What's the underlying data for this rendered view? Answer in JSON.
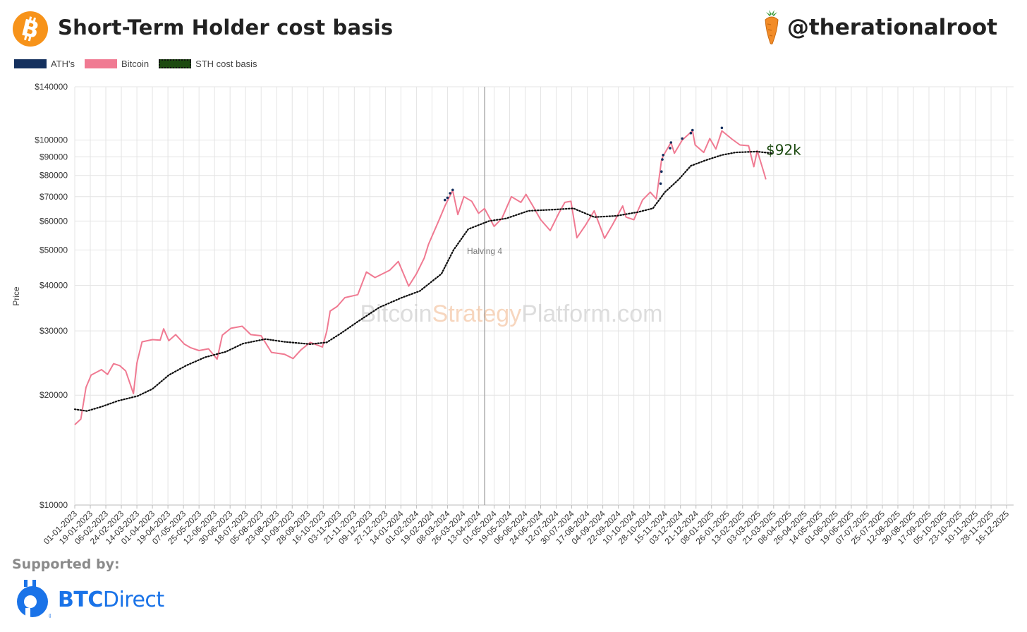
{
  "header": {
    "title": "Short-Term Holder cost basis",
    "handle": "@therationalroot",
    "logo_icon": "bitcoin-logo-icon",
    "handle_icon": "carrot-icon"
  },
  "legend": [
    {
      "label": "ATH's",
      "color": "#14305e"
    },
    {
      "label": "Bitcoin",
      "color": "#f07a92"
    },
    {
      "label": "STH cost basis",
      "color": "#1c4a10"
    }
  ],
  "footer": {
    "supported_by": "Supported by:",
    "sponsor_bold": "BTC",
    "sponsor_rest": "Direct",
    "sponsor_icon": "btcdirect-logo-icon",
    "sponsor_color": "#1a73e8"
  },
  "chart_data": {
    "type": "line",
    "y_scale": "log",
    "ylabel": "Price",
    "ylim": [
      10000,
      140000
    ],
    "y_ticks": [
      {
        "v": 10000,
        "label": "$10000"
      },
      {
        "v": 20000,
        "label": "$20000"
      },
      {
        "v": 30000,
        "label": "$30000"
      },
      {
        "v": 40000,
        "label": "$40000"
      },
      {
        "v": 50000,
        "label": "$50000"
      },
      {
        "v": 60000,
        "label": "$60000"
      },
      {
        "v": 70000,
        "label": "$70000"
      },
      {
        "v": 80000,
        "label": "$80000"
      },
      {
        "v": 90000,
        "label": "$90000"
      },
      {
        "v": 100000,
        "label": "$100000"
      },
      {
        "v": 140000,
        "label": "$140000"
      }
    ],
    "x_tick_labels": [
      "01-01-2023",
      "19-01-2023",
      "06-02-2023",
      "24-02-2023",
      "14-03-2023",
      "01-04-2023",
      "19-04-2023",
      "07-05-2023",
      "25-05-2023",
      "12-06-2023",
      "30-06-2023",
      "18-07-2023",
      "05-08-2023",
      "23-08-2023",
      "10-09-2023",
      "28-09-2023",
      "16-10-2023",
      "03-11-2023",
      "21-11-2023",
      "09-12-2023",
      "27-12-2023",
      "14-01-2024",
      "01-02-2024",
      "19-02-2024",
      "08-03-2024",
      "26-03-2024",
      "13-04-2024",
      "01-05-2024",
      "19-05-2024",
      "06-06-2024",
      "24-06-2024",
      "12-07-2024",
      "30-07-2024",
      "17-08-2024",
      "04-09-2024",
      "22-09-2024",
      "10-10-2024",
      "28-10-2024",
      "15-11-2024",
      "03-12-2024",
      "21-12-2024",
      "08-01-2025",
      "26-01-2025",
      "13-02-2025",
      "03-03-2025",
      "21-03-2025",
      "08-04-2025",
      "26-04-2025",
      "14-05-2025",
      "01-06-2025",
      "19-06-2025",
      "07-07-2025",
      "25-07-2025",
      "12-08-2025",
      "30-08-2025",
      "17-09-2025",
      "05-10-2025",
      "23-10-2025",
      "10-11-2025",
      "28-11-2025",
      "16-12-2025"
    ],
    "grid": true,
    "annotations": [
      {
        "type": "vline",
        "x": "20-04-2024",
        "label": "Halving 4"
      },
      {
        "type": "text",
        "x": "20-03-2025",
        "y": 92000,
        "label": "$92k",
        "color": "#1c4a10"
      }
    ],
    "watermark": {
      "part1": "Bitcoin",
      "part2": "Strategy",
      "part3": "Platform.com"
    },
    "series": [
      {
        "name": "Bitcoin",
        "color": "#f07a92",
        "points": [
          [
            "01-01-2023",
            16600
          ],
          [
            "08-01-2023",
            17200
          ],
          [
            "14-01-2023",
            21000
          ],
          [
            "20-01-2023",
            22700
          ],
          [
            "01-02-2023",
            23500
          ],
          [
            "08-02-2023",
            22800
          ],
          [
            "15-02-2023",
            24400
          ],
          [
            "22-02-2023",
            24100
          ],
          [
            "01-03-2023",
            23300
          ],
          [
            "10-03-2023",
            20200
          ],
          [
            "14-03-2023",
            24500
          ],
          [
            "20-03-2023",
            28000
          ],
          [
            "01-04-2023",
            28400
          ],
          [
            "10-04-2023",
            28300
          ],
          [
            "14-04-2023",
            30400
          ],
          [
            "20-04-2023",
            28200
          ],
          [
            "28-04-2023",
            29300
          ],
          [
            "08-05-2023",
            27600
          ],
          [
            "15-05-2023",
            27000
          ],
          [
            "25-05-2023",
            26500
          ],
          [
            "05-06-2023",
            26800
          ],
          [
            "15-06-2023",
            25100
          ],
          [
            "21-06-2023",
            29200
          ],
          [
            "01-07-2023",
            30500
          ],
          [
            "14-07-2023",
            30900
          ],
          [
            "24-07-2023",
            29300
          ],
          [
            "05-08-2023",
            29100
          ],
          [
            "17-08-2023",
            26200
          ],
          [
            "01-09-2023",
            25900
          ],
          [
            "11-09-2023",
            25200
          ],
          [
            "20-09-2023",
            26600
          ],
          [
            "01-10-2023",
            27900
          ],
          [
            "15-10-2023",
            27100
          ],
          [
            "20-10-2023",
            29900
          ],
          [
            "24-10-2023",
            34000
          ],
          [
            "01-11-2023",
            35000
          ],
          [
            "10-11-2023",
            37000
          ],
          [
            "25-11-2023",
            37700
          ],
          [
            "05-12-2023",
            43500
          ],
          [
            "15-12-2023",
            42000
          ],
          [
            "01-01-2024",
            44000
          ],
          [
            "11-01-2024",
            46500
          ],
          [
            "23-01-2024",
            39800
          ],
          [
            "01-02-2024",
            43000
          ],
          [
            "10-02-2024",
            47500
          ],
          [
            "15-02-2024",
            51800
          ],
          [
            "28-02-2024",
            61000
          ],
          [
            "05-03-2024",
            66000
          ],
          [
            "14-03-2024",
            72800
          ],
          [
            "20-03-2024",
            62500
          ],
          [
            "27-03-2024",
            70000
          ],
          [
            "05-04-2024",
            68000
          ],
          [
            "13-04-2024",
            63000
          ],
          [
            "20-04-2024",
            64900
          ],
          [
            "01-05-2024",
            58000
          ],
          [
            "10-05-2024",
            61000
          ],
          [
            "21-05-2024",
            70000
          ],
          [
            "01-06-2024",
            67500
          ],
          [
            "07-06-2024",
            71000
          ],
          [
            "15-06-2024",
            66000
          ],
          [
            "24-06-2024",
            60500
          ],
          [
            "05-07-2024",
            56500
          ],
          [
            "15-07-2024",
            63000
          ],
          [
            "22-07-2024",
            67500
          ],
          [
            "29-07-2024",
            68000
          ],
          [
            "05-08-2024",
            54000
          ],
          [
            "15-08-2024",
            58500
          ],
          [
            "25-08-2024",
            64000
          ],
          [
            "06-09-2024",
            53800
          ],
          [
            "15-09-2024",
            58500
          ],
          [
            "27-09-2024",
            66000
          ],
          [
            "01-10-2024",
            61500
          ],
          [
            "10-10-2024",
            60500
          ],
          [
            "20-10-2024",
            68500
          ],
          [
            "29-10-2024",
            72000
          ],
          [
            "05-11-2024",
            69000
          ],
          [
            "11-11-2024",
            88000
          ],
          [
            "13-11-2024",
            90500
          ],
          [
            "22-11-2024",
            98500
          ],
          [
            "26-11-2024",
            92000
          ],
          [
            "05-12-2024",
            100000
          ],
          [
            "17-12-2024",
            106100
          ],
          [
            "20-12-2024",
            97000
          ],
          [
            "30-12-2024",
            92500
          ],
          [
            "06-01-2025",
            101000
          ],
          [
            "13-01-2025",
            94500
          ],
          [
            "20-01-2025",
            106000
          ],
          [
            "01-02-2025",
            100500
          ],
          [
            "10-02-2025",
            97000
          ],
          [
            "20-02-2025",
            96500
          ],
          [
            "26-02-2025",
            84500
          ],
          [
            "02-03-2025",
            93500
          ],
          [
            "10-03-2025",
            81000
          ],
          [
            "12-03-2025",
            78000
          ]
        ]
      },
      {
        "name": "STH cost basis",
        "color": "#1c4a10",
        "points": [
          [
            "01-01-2023",
            18300
          ],
          [
            "15-01-2023",
            18100
          ],
          [
            "01-02-2023",
            18600
          ],
          [
            "20-02-2023",
            19300
          ],
          [
            "15-03-2023",
            19900
          ],
          [
            "01-04-2023",
            20800
          ],
          [
            "20-04-2023",
            22700
          ],
          [
            "10-05-2023",
            24100
          ],
          [
            "01-06-2023",
            25400
          ],
          [
            "25-06-2023",
            26300
          ],
          [
            "15-07-2023",
            27700
          ],
          [
            "10-08-2023",
            28500
          ],
          [
            "01-09-2023",
            28000
          ],
          [
            "01-10-2023",
            27600
          ],
          [
            "20-10-2023",
            27900
          ],
          [
            "05-11-2023",
            29500
          ],
          [
            "25-11-2023",
            31800
          ],
          [
            "20-12-2023",
            34800
          ],
          [
            "15-01-2024",
            37000
          ],
          [
            "05-02-2024",
            38600
          ],
          [
            "01-03-2024",
            43000
          ],
          [
            "15-03-2024",
            50000
          ],
          [
            "01-04-2024",
            57000
          ],
          [
            "25-04-2024",
            60000
          ],
          [
            "15-05-2024",
            61000
          ],
          [
            "10-06-2024",
            64000
          ],
          [
            "10-07-2024",
            64500
          ],
          [
            "01-08-2024",
            65000
          ],
          [
            "25-08-2024",
            61500
          ],
          [
            "20-09-2024",
            62000
          ],
          [
            "15-10-2024",
            63500
          ],
          [
            "01-11-2024",
            65000
          ],
          [
            "15-11-2024",
            72000
          ],
          [
            "01-12-2024",
            78000
          ],
          [
            "15-12-2024",
            85000
          ],
          [
            "01-01-2025",
            88000
          ],
          [
            "20-01-2025",
            91000
          ],
          [
            "05-02-2025",
            92500
          ],
          [
            "01-03-2025",
            93000
          ],
          [
            "20-03-2025",
            92000
          ]
        ]
      },
      {
        "name": "ATH's",
        "color": "#14305e",
        "points": [
          [
            "05-03-2024",
            68500
          ],
          [
            "08-03-2024",
            69500
          ],
          [
            "11-03-2024",
            71500
          ],
          [
            "14-03-2024",
            73000
          ],
          [
            "10-11-2024",
            76000
          ],
          [
            "11-11-2024",
            82000
          ],
          [
            "12-11-2024",
            88500
          ],
          [
            "13-11-2024",
            91000
          ],
          [
            "21-11-2024",
            95000
          ],
          [
            "22-11-2024",
            98500
          ],
          [
            "05-12-2024",
            101000
          ],
          [
            "15-12-2024",
            104500
          ],
          [
            "17-12-2024",
            106500
          ],
          [
            "20-01-2025",
            108000
          ]
        ]
      }
    ]
  }
}
